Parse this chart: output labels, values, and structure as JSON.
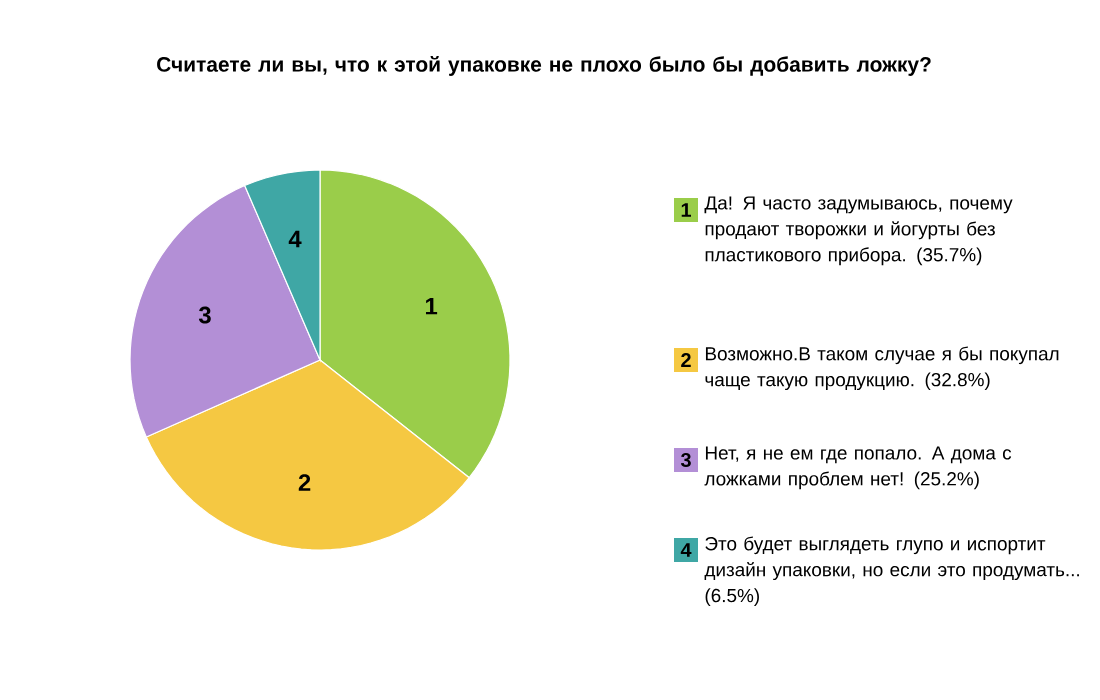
{
  "chart_data": {
    "type": "pie",
    "title": "Считаете ли вы, что к этой упаковке не плохо было бы добавить ложку?",
    "categories": [
      "Да! Я часто задумываюсь, почему продают творожки и йогурты без пластикового прибора. (35.7%)",
      "Возможно.В таком случае я бы покупал чаще такую продукцию. (32.8%)",
      "Нет, я не ем где попало. А дома с ложками проблем нет! (25.2%)",
      "Это будет выглядеть глупо и испортит дизайн упаковки, но если это продумать... (6.5%)"
    ],
    "values": [
      35.7,
      32.8,
      25.2,
      6.5
    ],
    "colors": [
      "#9acd4a",
      "#f5c842",
      "#b38fd6",
      "#3fa7a5"
    ],
    "annotations": [
      "1",
      "2",
      "3",
      "4"
    ],
    "legend": "right"
  }
}
